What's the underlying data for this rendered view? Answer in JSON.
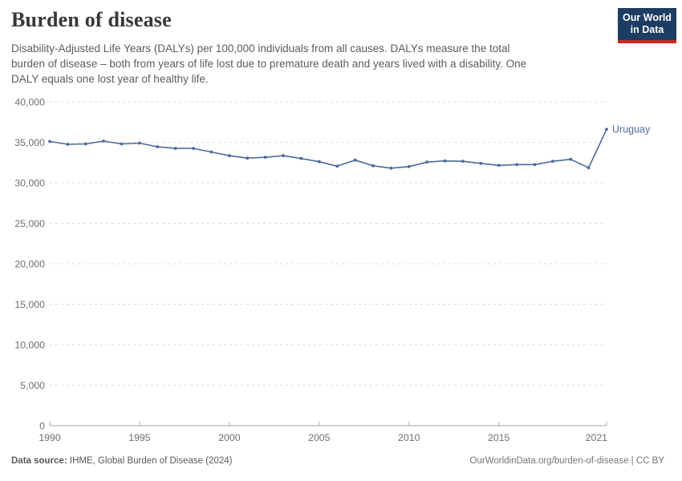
{
  "header": {
    "title": "Burden of disease",
    "subtitle": "Disability-Adjusted Life Years (DALYs) per 100,000 individuals from all causes. DALYs measure the total\nburden of disease – both from years of life lost due to premature death and years lived with a disability. One\nDALY equals one lost year of healthy life.",
    "logo": {
      "line1": "Our World",
      "line2": "in Data",
      "bg_color": "#1d3d63",
      "accent_color": "#cf2722"
    }
  },
  "chart_data": {
    "type": "line",
    "title": "Burden of disease",
    "x": [
      1990,
      1991,
      1992,
      1993,
      1994,
      1995,
      1996,
      1997,
      1998,
      1999,
      2000,
      2001,
      2002,
      2003,
      2004,
      2005,
      2006,
      2007,
      2008,
      2009,
      2010,
      2011,
      2012,
      2013,
      2014,
      2015,
      2016,
      2017,
      2018,
      2019,
      2020,
      2021
    ],
    "series": [
      {
        "name": "Uruguay",
        "color": "#4C6A9C",
        "values": [
          35100,
          34750,
          34800,
          35150,
          34800,
          34900,
          34450,
          34250,
          34250,
          33800,
          33350,
          33050,
          33150,
          33350,
          33000,
          32600,
          32050,
          32800,
          32100,
          31800,
          32000,
          32550,
          32700,
          32650,
          32400,
          32150,
          32250,
          32250,
          32650,
          32900,
          31850,
          36600
        ]
      }
    ],
    "xlabel": "",
    "ylabel": "",
    "ylim": [
      0,
      40000
    ],
    "yticks": [
      0,
      5000,
      10000,
      15000,
      20000,
      25000,
      30000,
      35000,
      40000
    ],
    "xticks": [
      1990,
      1995,
      2000,
      2005,
      2010,
      2015,
      2021
    ],
    "grid": "horizontal-dashed",
    "legend": "end-of-line-label",
    "colors": {
      "gridline": "#dcdcdc",
      "axis": "#a7a7a7",
      "tick": "#b0b0b0",
      "tick_label": "#6e6e6e"
    }
  },
  "footer": {
    "source_label": "Data source:",
    "source_text": "IHME, Global Burden of Disease (2024)",
    "rights": "OurWorldinData.org/burden-of-disease | CC BY"
  }
}
